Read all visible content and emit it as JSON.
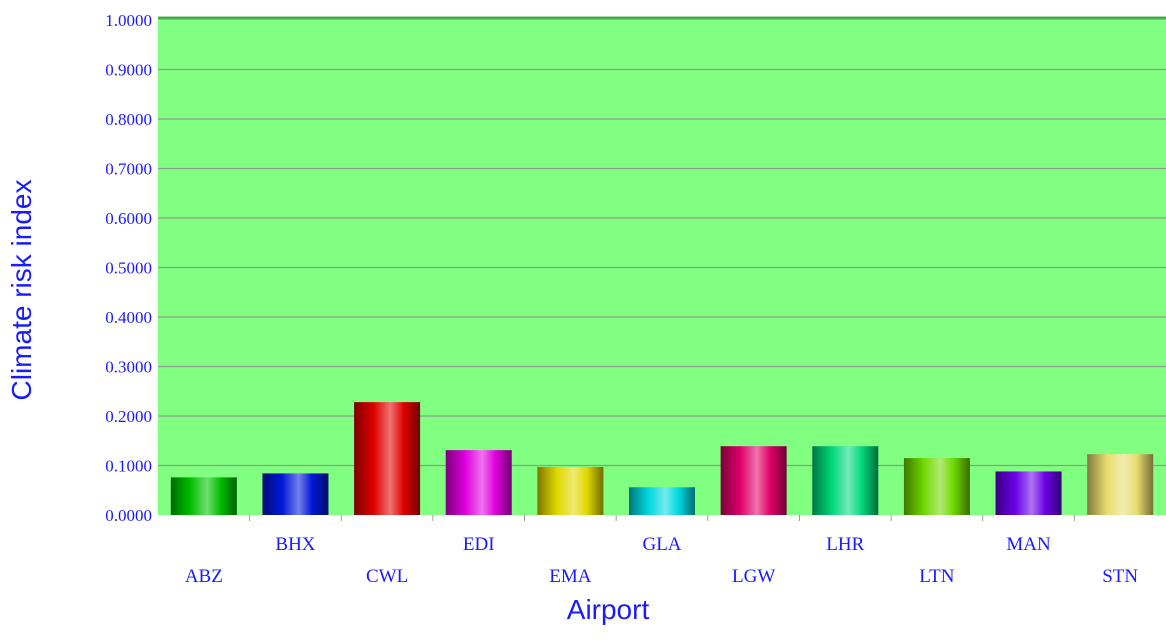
{
  "chart_data": {
    "type": "bar",
    "title": "",
    "xlabel": "Airport",
    "ylabel": "Climate risk index",
    "ylim": [
      0,
      1
    ],
    "yticks": [
      "0.0000",
      "0.1000",
      "0.2000",
      "0.3000",
      "0.4000",
      "0.5000",
      "0.6000",
      "0.7000",
      "0.8000",
      "0.9000",
      "1.0000"
    ],
    "grid": true,
    "categories": [
      "ABZ",
      "BHX",
      "CWL",
      "EDI",
      "EMA",
      "GLA",
      "LGW",
      "LHR",
      "LTN",
      "MAN",
      "STN"
    ],
    "values": [
      0.076,
      0.084,
      0.228,
      0.131,
      0.097,
      0.056,
      0.139,
      0.139,
      0.115,
      0.088,
      0.123
    ],
    "colors": [
      "#00c000",
      "#0018d8",
      "#e00000",
      "#e000e0",
      "#e0d800",
      "#00d8e0",
      "#e0006a",
      "#00d87a",
      "#70d800",
      "#6a00e8",
      "#e8dc70"
    ],
    "plot_background": "#80ff80",
    "text_color": "#1a1aff"
  }
}
